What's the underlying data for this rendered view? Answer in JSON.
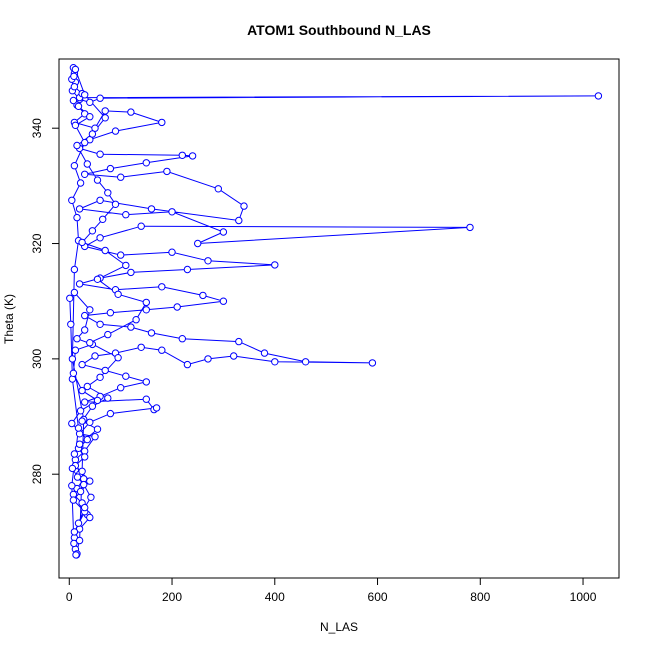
{
  "chart_data": {
    "type": "scatter",
    "title": "ATOM1 Southbound N_LAS",
    "xlabel": "N_LAS",
    "ylabel": "Theta (K)",
    "xlim": [
      -20,
      1070
    ],
    "ylim": [
      262,
      352
    ],
    "x_ticks": [
      0,
      200,
      400,
      600,
      800,
      1000
    ],
    "y_ticks": [
      280,
      300,
      320,
      340
    ],
    "grid": false,
    "legend": "none",
    "style": {
      "color": "#0000ff",
      "marker": "open-circle",
      "connected": true
    },
    "series": [
      {
        "points": [
          [
            8,
            350.5
          ],
          [
            10,
            349.5
          ],
          [
            12,
            348.0
          ],
          [
            6,
            346.5
          ],
          [
            20,
            345.0
          ],
          [
            40,
            344.5
          ],
          [
            60,
            345.2
          ],
          [
            1030,
            345.6
          ],
          [
            20,
            345.3
          ],
          [
            15,
            344.0
          ],
          [
            30,
            342.5
          ],
          [
            10,
            341.0
          ],
          [
            50,
            340.0
          ],
          [
            70,
            343.0
          ],
          [
            120,
            342.8
          ],
          [
            180,
            341.0
          ],
          [
            90,
            339.5
          ],
          [
            40,
            338.0
          ],
          [
            20,
            336.5
          ],
          [
            60,
            335.5
          ],
          [
            220,
            335.3
          ],
          [
            240,
            335.2
          ],
          [
            150,
            334.0
          ],
          [
            80,
            333.0
          ],
          [
            30,
            332.0
          ],
          [
            100,
            331.5
          ],
          [
            190,
            332.5
          ],
          [
            290,
            329.5
          ],
          [
            340,
            326.5
          ],
          [
            330,
            324.0
          ],
          [
            160,
            326.0
          ],
          [
            60,
            327.5
          ],
          [
            20,
            326.0
          ],
          [
            110,
            325.0
          ],
          [
            200,
            325.5
          ],
          [
            300,
            322.0
          ],
          [
            250,
            320.0
          ],
          [
            780,
            322.8
          ],
          [
            140,
            323.0
          ],
          [
            60,
            321.0
          ],
          [
            30,
            319.5
          ],
          [
            100,
            318.0
          ],
          [
            200,
            318.5
          ],
          [
            270,
            317.0
          ],
          [
            400,
            316.3
          ],
          [
            230,
            315.5
          ],
          [
            120,
            315.0
          ],
          [
            60,
            314.0
          ],
          [
            20,
            313.0
          ],
          [
            90,
            312.0
          ],
          [
            180,
            312.5
          ],
          [
            260,
            311.0
          ],
          [
            300,
            310.0
          ],
          [
            210,
            309.0
          ],
          [
            150,
            308.5
          ],
          [
            80,
            308.0
          ],
          [
            30,
            307.5
          ],
          [
            60,
            306.0
          ],
          [
            120,
            305.5
          ],
          [
            160,
            304.5
          ],
          [
            220,
            303.5
          ],
          [
            330,
            303.0
          ],
          [
            380,
            301.0
          ],
          [
            460,
            299.5
          ],
          [
            590,
            299.3
          ],
          [
            400,
            299.5
          ],
          [
            320,
            300.5
          ],
          [
            270,
            300.0
          ],
          [
            230,
            299.0
          ],
          [
            180,
            301.5
          ],
          [
            140,
            302.0
          ],
          [
            90,
            301.0
          ],
          [
            50,
            300.5
          ],
          [
            25,
            299.0
          ],
          [
            70,
            298.0
          ],
          [
            110,
            297.0
          ],
          [
            150,
            296.0
          ],
          [
            100,
            295.0
          ],
          [
            60,
            293.5
          ],
          [
            30,
            292.5
          ],
          [
            150,
            293.0
          ],
          [
            165,
            291.2
          ],
          [
            170,
            291.5
          ],
          [
            80,
            290.5
          ],
          [
            40,
            289.0
          ],
          [
            20,
            287.0
          ],
          [
            50,
            286.5
          ],
          [
            30,
            284.0
          ],
          [
            12,
            282.5
          ],
          [
            20,
            280.0
          ],
          [
            28,
            279.2
          ],
          [
            15,
            277.5
          ],
          [
            8,
            276.5
          ],
          [
            25,
            275.0
          ],
          [
            35,
            273.0
          ],
          [
            40,
            272.5
          ],
          [
            20,
            270.5
          ],
          [
            10,
            269.0
          ],
          [
            12,
            267.0
          ],
          [
            14,
            266.0
          ],
          [
            9,
            268.0
          ],
          [
            5,
            278.0
          ],
          [
            18,
            288.0
          ],
          [
            6,
            296.5
          ],
          [
            3,
            306.0
          ],
          [
            1,
            310.5
          ],
          [
            10,
            311.5
          ],
          [
            40,
            308.5
          ],
          [
            30,
            305.0
          ],
          [
            15,
            303.5
          ],
          [
            45,
            302.5
          ],
          [
            12,
            301.5
          ],
          [
            8,
            297.5
          ],
          [
            25,
            294.5
          ],
          [
            55,
            292.8
          ],
          [
            22,
            291.0
          ],
          [
            5,
            288.8
          ],
          [
            35,
            286.0
          ],
          [
            18,
            284.5
          ],
          [
            30,
            283.0
          ],
          [
            12,
            281.5
          ],
          [
            40,
            278.8
          ],
          [
            22,
            277.0
          ],
          [
            8,
            275.5
          ],
          [
            30,
            273.5
          ],
          [
            10,
            270.0
          ],
          [
            15,
            266.2
          ],
          [
            13,
            266.0
          ],
          [
            20,
            268.5
          ],
          [
            25,
            280.5
          ],
          [
            28,
            289.5
          ],
          [
            6,
            300.0
          ],
          [
            10,
            315.5
          ],
          [
            18,
            320.5
          ],
          [
            15,
            324.5
          ],
          [
            5,
            327.5
          ],
          [
            22,
            330.5
          ],
          [
            10,
            333.5
          ],
          [
            30,
            337.5
          ],
          [
            12,
            340.5
          ],
          [
            40,
            342.0
          ],
          [
            18,
            343.8
          ],
          [
            8,
            344.8
          ],
          [
            25,
            346.0
          ],
          [
            10,
            347.2
          ],
          [
            5,
            348.5
          ],
          [
            9,
            349.0
          ],
          [
            12,
            350.2
          ],
          [
            30,
            345.8
          ],
          [
            70,
            341.8
          ],
          [
            45,
            339.0
          ],
          [
            15,
            337.0
          ],
          [
            35,
            333.8
          ],
          [
            55,
            331.0
          ],
          [
            75,
            328.8
          ],
          [
            90,
            326.8
          ],
          [
            65,
            324.2
          ],
          [
            45,
            322.2
          ],
          [
            25,
            320.2
          ],
          [
            70,
            318.8
          ],
          [
            110,
            316.2
          ],
          [
            55,
            313.8
          ],
          [
            95,
            311.2
          ],
          [
            150,
            309.8
          ],
          [
            130,
            306.8
          ],
          [
            75,
            304.2
          ],
          [
            40,
            302.8
          ],
          [
            95,
            300.2
          ],
          [
            60,
            296.8
          ],
          [
            35,
            295.2
          ],
          [
            75,
            293.2
          ],
          [
            45,
            291.8
          ],
          [
            25,
            289.2
          ],
          [
            55,
            287.8
          ],
          [
            20,
            285.2
          ],
          [
            10,
            283.5
          ],
          [
            6,
            281.0
          ],
          [
            16,
            279.5
          ],
          [
            28,
            278.2
          ],
          [
            42,
            276.0
          ],
          [
            30,
            274.2
          ],
          [
            18,
            271.5
          ]
        ]
      }
    ]
  }
}
